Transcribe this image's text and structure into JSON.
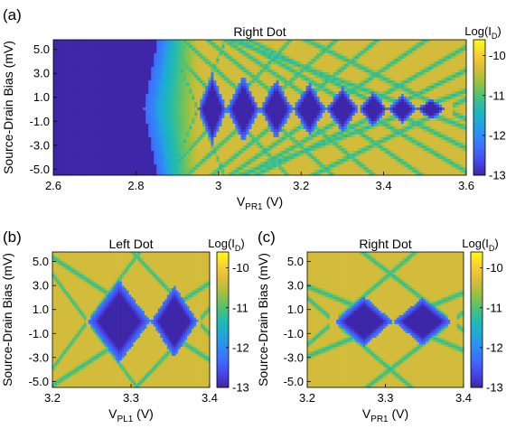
{
  "colormap": [
    "#3e26a8",
    "#4746eb",
    "#3e6bfd",
    "#2d8ef2",
    "#1ea9d8",
    "#23bbac",
    "#5ac26b",
    "#a2c13d",
    "#dfbb3a",
    "#fbd12f",
    "#f9fb15"
  ],
  "chart_data": [
    {
      "type": "heatmap",
      "panel_label": "(a)",
      "title": "Right Dot",
      "xlabel": "V",
      "xlabel_sub": "PR1",
      "xlabel_unit": " (V)",
      "ylabel": "Source-Drain Bias (mV)",
      "xlim": [
        2.6,
        3.6
      ],
      "ylim": [
        -5.5,
        5.8
      ],
      "x_ticks": [
        2.6,
        2.8,
        3.0,
        3.2,
        3.4,
        3.6
      ],
      "x_tick_labels": [
        "2.6",
        "2.8",
        "3",
        "3.2",
        "3.4",
        "3.6"
      ],
      "y_ticks": [
        5.0,
        3.0,
        1.0,
        -1.0,
        -3.0,
        -5.0
      ],
      "y_tick_labels": [
        "5.0",
        "3.0",
        "1.0",
        "-1.0",
        "-3.0",
        "-5.0"
      ],
      "colorbar": {
        "label": "Log(I",
        "label_sub": "D",
        "label_tail": ")",
        "range": [
          -13,
          -9.6
        ],
        "ticks": [
          -10,
          -11,
          -12,
          -13
        ],
        "tick_labels": [
          "-10",
          "-11",
          "-12",
          "-13"
        ]
      },
      "diamonds": {
        "onset_x": 2.82,
        "peak_gates_V": [
          2.95,
          3.02,
          3.1,
          3.18,
          3.26,
          3.34,
          3.41,
          3.48,
          3.55
        ],
        "charging_energy_mV": [
          6.0,
          5.6,
          5.0,
          4.5,
          3.8,
          3.0,
          2.4,
          1.8,
          1.2
        ]
      }
    },
    {
      "type": "heatmap",
      "panel_label": "(b)",
      "title": "Left Dot",
      "xlabel": "V",
      "xlabel_sub": "PL1",
      "xlabel_unit": " (V)",
      "ylabel": "Source-Drain Bias (mV)",
      "xlim": [
        3.2,
        3.4
      ],
      "ylim": [
        -5.5,
        5.8
      ],
      "x_ticks": [
        3.2,
        3.3,
        3.4
      ],
      "x_tick_labels": [
        "3.2",
        "3.3",
        "3.4"
      ],
      "y_ticks": [
        5.0,
        3.0,
        1.0,
        -1.0,
        -3.0,
        -5.0
      ],
      "y_tick_labels": [
        "5.0",
        "3.0",
        "1.0",
        "-1.0",
        "-3.0",
        "-5.0"
      ],
      "colorbar": {
        "label": "Log(I",
        "label_sub": "D",
        "label_tail": ")",
        "range": [
          -13,
          -9.6
        ],
        "ticks": [
          -10,
          -11,
          -12,
          -13
        ],
        "tick_labels": [
          "-10",
          "-11",
          "-12",
          "-13"
        ]
      },
      "diamonds": {
        "peak_gates_V": [
          3.245,
          3.325,
          3.385
        ],
        "charging_energy_mV": [
          7.0,
          6.0,
          4.2
        ]
      }
    },
    {
      "type": "heatmap",
      "panel_label": "(c)",
      "title": "Right Dot",
      "xlabel": "V",
      "xlabel_sub": "PR1",
      "xlabel_unit": " (V)",
      "ylabel": "Source-Drain Bias (mV)",
      "xlim": [
        3.2,
        3.4
      ],
      "ylim": [
        -5.5,
        5.8
      ],
      "x_ticks": [
        3.2,
        3.3,
        3.4
      ],
      "x_tick_labels": [
        "3.2",
        "3.3",
        "3.4"
      ],
      "y_ticks": [
        5.0,
        3.0,
        1.0,
        -1.0,
        -3.0,
        -5.0
      ],
      "y_tick_labels": [
        "5.0",
        "3.0",
        "1.0",
        "-1.0",
        "-3.0",
        "-5.0"
      ],
      "colorbar": {
        "label": "Log(I",
        "label_sub": "D",
        "label_tail": ")",
        "range": [
          -13,
          -9.6
        ],
        "ticks": [
          -10,
          -11,
          -12,
          -13
        ],
        "tick_labels": [
          "-10",
          "-11",
          "-12",
          "-13"
        ]
      },
      "diamonds": {
        "peak_gates_V": [
          3.235,
          3.31,
          3.385
        ],
        "charging_energy_mV": [
          4.2,
          4.0,
          3.8
        ]
      }
    }
  ]
}
